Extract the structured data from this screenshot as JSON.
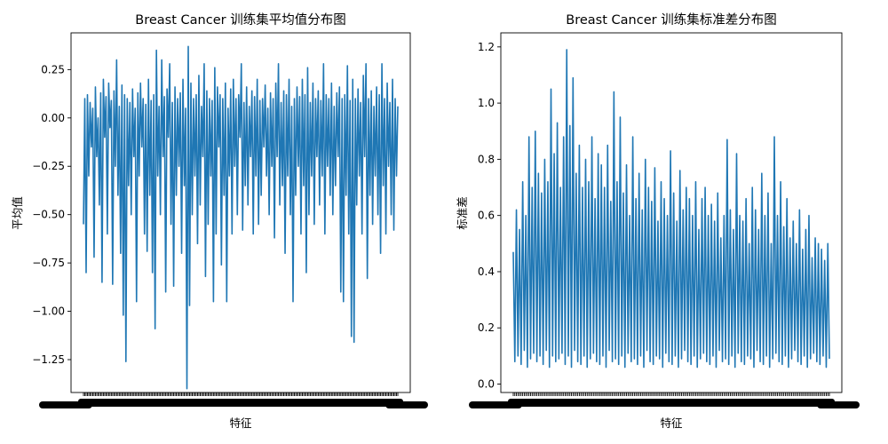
{
  "chart_data": [
    {
      "type": "line",
      "title": "Breast Cancer 训练集平均值分布图",
      "xlabel": "特征",
      "ylabel": "平均值",
      "ylim": [
        -1.42,
        0.44
      ],
      "yticks": [
        0.25,
        0.0,
        -0.25,
        -0.5,
        -0.75,
        -1.0,
        -1.25
      ],
      "ytick_labels": [
        "0.25",
        "0.00",
        "−0.25",
        "−0.50",
        "−0.75",
        "−1.00",
        "−1.25"
      ],
      "xtick_labels_note": "dense overlapping feature-name tick labels, illegible",
      "series": [
        {
          "color": "#1f77b4",
          "values": [
            -0.55,
            0.1,
            -0.8,
            0.12,
            -0.3,
            0.08,
            -0.15,
            0.05,
            -0.72,
            0.16,
            -0.2,
            0.0,
            -0.45,
            0.13,
            -0.85,
            0.2,
            -0.1,
            0.11,
            -0.6,
            0.18,
            -0.05,
            0.09,
            -0.86,
            0.14,
            -0.25,
            0.3,
            -0.4,
            0.06,
            -0.7,
            0.17,
            -1.02,
            0.12,
            -1.26,
            0.1,
            -0.35,
            0.08,
            -0.5,
            0.15,
            -0.2,
            0.05,
            -0.95,
            0.13,
            -0.3,
            0.18,
            -0.15,
            0.1,
            -0.6,
            0.07,
            -0.69,
            0.2,
            -0.4,
            0.09,
            -0.8,
            0.12,
            -1.09,
            0.35,
            -0.3,
            0.06,
            -0.5,
            0.3,
            -0.2,
            0.11,
            -0.9,
            0.15,
            -0.1,
            0.28,
            -0.55,
            0.08,
            -0.87,
            0.16,
            -0.4,
            0.1,
            -0.25,
            0.13,
            -0.7,
            0.2,
            -0.35,
            0.05,
            -1.4,
            0.37,
            -0.97,
            0.18,
            -0.5,
            0.1,
            -0.3,
            0.12,
            -0.65,
            0.22,
            -0.45,
            0.06,
            -0.2,
            0.28,
            -0.82,
            0.14,
            -0.55,
            0.1,
            -0.3,
            0.09,
            -0.95,
            0.26,
            -0.6,
            0.16,
            -0.15,
            0.12,
            -0.76,
            0.1,
            -0.4,
            0.18,
            -0.95,
            0.05,
            -0.3,
            0.15,
            -0.6,
            0.2,
            -0.25,
            0.1,
            -0.5,
            0.12,
            -0.1,
            0.28,
            -0.58,
            0.08,
            -0.35,
            0.16,
            -0.45,
            0.06,
            -0.2,
            0.14,
            -0.6,
            0.11,
            -0.3,
            0.2,
            -0.55,
            0.09,
            -0.4,
            0.1,
            -0.15,
            0.17,
            -0.3,
            0.05,
            -0.5,
            0.13,
            -0.25,
            0.1,
            -0.62,
            0.18,
            -0.2,
            0.28,
            -0.45,
            0.08,
            -0.35,
            0.14,
            -0.7,
            0.12,
            -0.3,
            0.2,
            -0.5,
            0.06,
            -0.95,
            0.1,
            -0.4,
            0.16,
            -0.25,
            0.11,
            -0.6,
            0.2,
            -0.35,
            0.12,
            -0.8,
            0.26,
            -0.5,
            0.08,
            -0.3,
            0.18,
            -0.55,
            0.1,
            -0.2,
            0.14,
            -0.45,
            0.09,
            -0.3,
            0.28,
            -0.6,
            0.12,
            -0.25,
            0.1,
            -0.4,
            0.18,
            -0.5,
            0.06,
            -0.35,
            0.13,
            -0.2,
            0.16,
            -0.9,
            0.1,
            -0.95,
            0.12,
            -0.4,
            0.27,
            -0.6,
            0.09,
            -1.13,
            0.2,
            -1.16,
            0.1,
            -0.45,
            0.15,
            -0.3,
            0.08,
            -0.6,
            0.22,
            -0.2,
            0.28,
            -0.83,
            0.1,
            -0.4,
            0.14,
            -0.55,
            0.06,
            -0.3,
            0.16,
            -0.5,
            0.12,
            -0.7,
            0.28,
            -0.35,
            0.1,
            -0.6,
            0.18,
            -0.25,
            0.08,
            -0.5,
            0.2,
            -0.58,
            0.1,
            -0.3,
            0.06
          ]
        }
      ]
    },
    {
      "type": "line",
      "title": "Breast Cancer 训练集标准差分布图",
      "xlabel": "特征",
      "ylabel": "标准差",
      "ylim": [
        -0.03,
        1.25
      ],
      "yticks": [
        0.0,
        0.2,
        0.4,
        0.6,
        0.8,
        1.0,
        1.2
      ],
      "ytick_labels": [
        "0.0",
        "0.2",
        "0.4",
        "0.6",
        "0.8",
        "1.0",
        "1.2"
      ],
      "xtick_labels_note": "dense overlapping feature-name tick labels, illegible",
      "series": [
        {
          "color": "#1f77b4",
          "values": [
            0.47,
            0.08,
            0.62,
            0.1,
            0.55,
            0.07,
            0.72,
            0.12,
            0.6,
            0.06,
            0.88,
            0.09,
            0.7,
            0.11,
            0.9,
            0.08,
            0.75,
            0.1,
            0.68,
            0.07,
            0.8,
            0.12,
            0.72,
            0.06,
            1.05,
            0.1,
            0.82,
            0.08,
            0.93,
            0.09,
            0.7,
            0.11,
            0.88,
            0.07,
            1.19,
            0.1,
            0.92,
            0.06,
            1.09,
            0.12,
            0.75,
            0.08,
            0.85,
            0.07,
            0.7,
            0.1,
            0.8,
            0.06,
            0.72,
            0.09,
            0.88,
            0.11,
            0.66,
            0.08,
            0.82,
            0.07,
            0.78,
            0.1,
            0.7,
            0.06,
            0.85,
            0.12,
            0.65,
            0.08,
            1.04,
            0.09,
            0.72,
            0.07,
            0.95,
            0.1,
            0.68,
            0.06,
            0.78,
            0.11,
            0.6,
            0.08,
            0.88,
            0.09,
            0.66,
            0.07,
            0.75,
            0.1,
            0.62,
            0.06,
            0.8,
            0.12,
            0.7,
            0.08,
            0.65,
            0.07,
            0.77,
            0.1,
            0.58,
            0.09,
            0.72,
            0.06,
            0.66,
            0.11,
            0.6,
            0.08,
            0.83,
            0.07,
            0.68,
            0.1,
            0.58,
            0.06,
            0.76,
            0.09,
            0.62,
            0.12,
            0.7,
            0.08,
            0.66,
            0.07,
            0.6,
            0.1,
            0.72,
            0.06,
            0.55,
            0.09,
            0.66,
            0.11,
            0.7,
            0.08,
            0.6,
            0.07,
            0.64,
            0.1,
            0.58,
            0.06,
            0.68,
            0.12,
            0.52,
            0.08,
            0.6,
            0.09,
            0.87,
            0.07,
            0.62,
            0.1,
            0.55,
            0.06,
            0.82,
            0.11,
            0.6,
            0.08,
            0.58,
            0.07,
            0.66,
            0.1,
            0.5,
            0.09,
            0.7,
            0.06,
            0.62,
            0.12,
            0.55,
            0.08,
            0.75,
            0.07,
            0.6,
            0.1,
            0.68,
            0.06,
            0.5,
            0.09,
            0.88,
            0.11,
            0.6,
            0.08,
            0.72,
            0.07,
            0.56,
            0.1,
            0.66,
            0.06,
            0.52,
            0.09,
            0.58,
            0.12,
            0.5,
            0.08,
            0.62,
            0.07,
            0.48,
            0.1,
            0.55,
            0.06,
            0.6,
            0.09,
            0.45,
            0.11,
            0.52,
            0.08,
            0.5,
            0.07,
            0.48,
            0.1,
            0.44,
            0.06,
            0.5,
            0.09
          ]
        }
      ]
    }
  ]
}
